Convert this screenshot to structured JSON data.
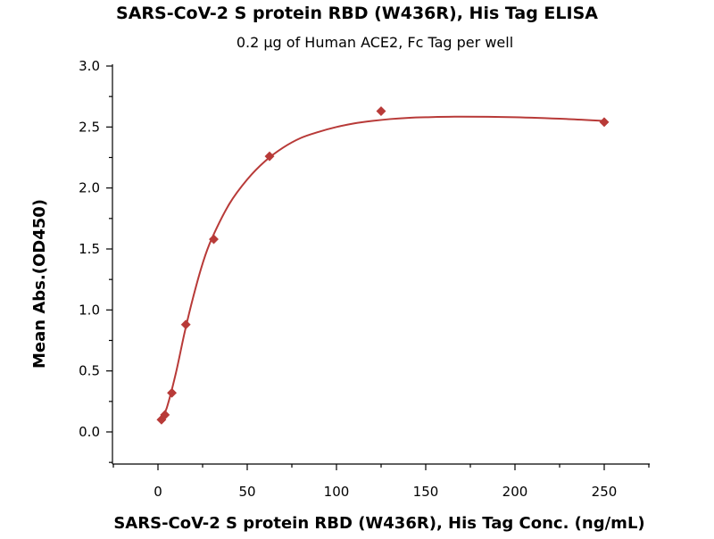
{
  "chart_data": {
    "type": "scatter",
    "title": "SARS-CoV-2 S protein RBD (W436R), His Tag ELISA",
    "subtitle": "0.2 μg of Human ACE2, Fc Tag per well",
    "xlabel": "SARS-CoV-2 S protein RBD (W436R), His Tag Conc. (ng/mL)",
    "ylabel": "Mean Abs.(OD450)",
    "xlim": [
      -25,
      275
    ],
    "ylim": [
      -0.27,
      3.0
    ],
    "x_ticks": [
      0,
      50,
      100,
      150,
      200,
      250
    ],
    "y_ticks": [
      0.0,
      0.5,
      1.0,
      1.5,
      2.0,
      2.5,
      3.0
    ],
    "x_tick_labels": [
      "0",
      "50",
      "100",
      "150",
      "200",
      "250"
    ],
    "y_tick_labels": [
      "0.0",
      "0.5",
      "1.0",
      "1.5",
      "2.0",
      "2.5",
      "3.0"
    ],
    "grid": false,
    "legend": "none",
    "series": [
      {
        "marker": "diamond",
        "color": "#b83a38",
        "x": [
          1.95,
          3.9,
          7.8,
          15.6,
          31.25,
          62.5,
          125,
          250
        ],
        "y": [
          0.1,
          0.14,
          0.32,
          0.88,
          1.58,
          2.26,
          2.63,
          2.54
        ]
      }
    ],
    "fit_curve": {
      "color": "#b83a38",
      "x": [
        1.95,
        5,
        10,
        15,
        20,
        25,
        30,
        40,
        50,
        60,
        70,
        80,
        90,
        100,
        110,
        120,
        130,
        140,
        150,
        170,
        200,
        230,
        250
      ],
      "y": [
        0.1,
        0.2,
        0.48,
        0.82,
        1.12,
        1.38,
        1.58,
        1.87,
        2.07,
        2.22,
        2.33,
        2.41,
        2.46,
        2.5,
        2.53,
        2.55,
        2.565,
        2.575,
        2.58,
        2.585,
        2.58,
        2.565,
        2.55
      ]
    }
  }
}
